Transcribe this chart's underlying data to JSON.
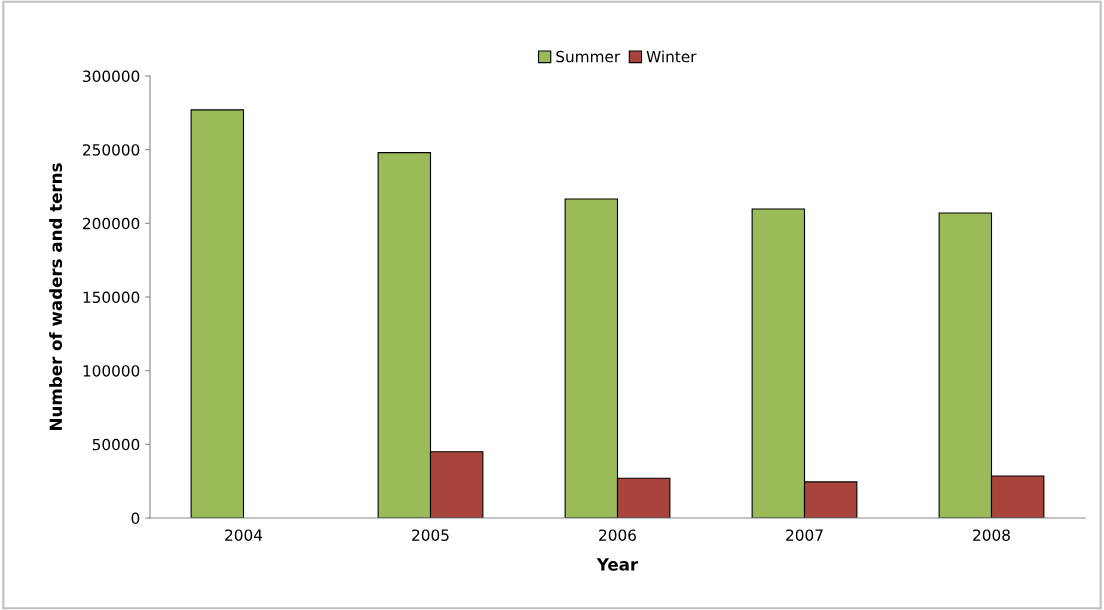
{
  "chart_data": {
    "type": "bar",
    "xlabel": "Year",
    "ylabel": "Number of waders and terns",
    "categories": [
      "2004",
      "2005",
      "2006",
      "2007",
      "2008"
    ],
    "series": [
      {
        "name": "Summer",
        "color": "#9bbb59",
        "values": [
          277000,
          248000,
          216500,
          209700,
          207000
        ]
      },
      {
        "name": "Winter",
        "color": "#a9443d",
        "values": [
          null,
          45000,
          27000,
          24500,
          28500
        ]
      }
    ],
    "ylim": [
      0,
      300000
    ],
    "yticks": [
      0,
      50000,
      100000,
      150000,
      200000,
      250000,
      300000
    ],
    "grid": false,
    "legend": "top"
  }
}
